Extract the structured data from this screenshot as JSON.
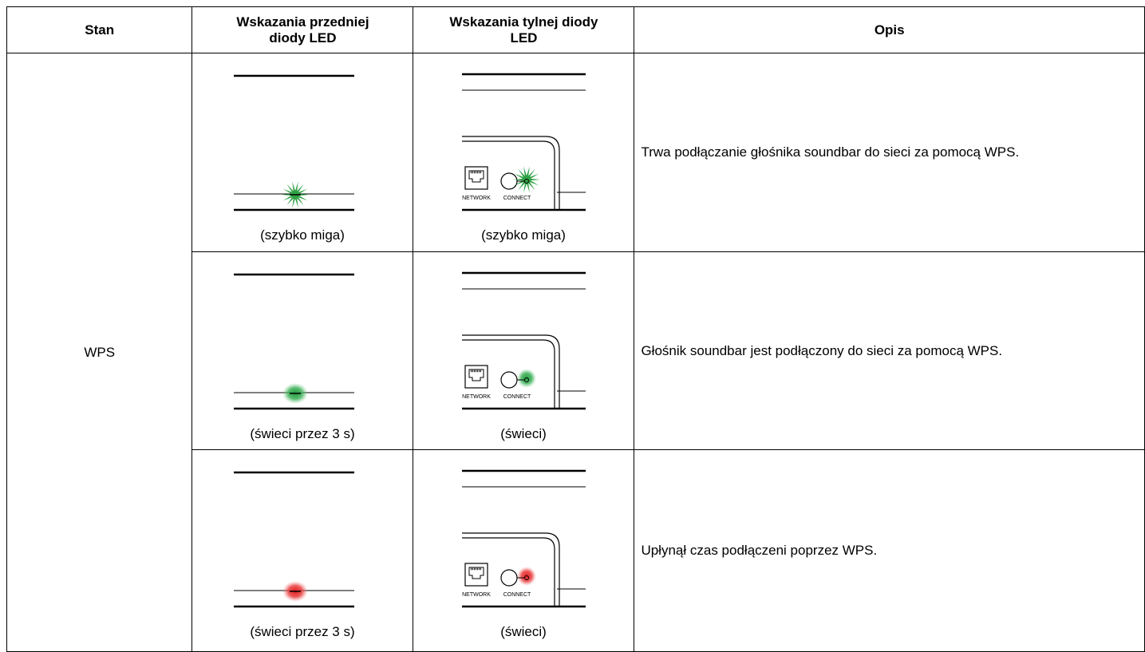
{
  "header": {
    "columns": [
      "Stan",
      "Wskazania przedniej diody LED",
      "Wskazania tylnej diody LED",
      "Opis"
    ]
  },
  "state": "WPS",
  "labels": {
    "network": "NETWORK",
    "connect": "CONNECT"
  },
  "rows": [
    {
      "front_caption": "(szybko miga)",
      "rear_caption": "(szybko miga)",
      "description": "Trwa podłączanie głośnika soundbar do sieci za pomocą WPS."
    },
    {
      "front_caption": "(świeci przez 3 s)",
      "rear_caption": "(świeci)",
      "description": "Głośnik soundbar jest podłączony do sieci za pomocą WPS."
    },
    {
      "front_caption": "(świeci przez 3 s)",
      "rear_caption": "(świeci)",
      "description": "Upłynął czas podłączeni poprzez WPS."
    }
  ]
}
